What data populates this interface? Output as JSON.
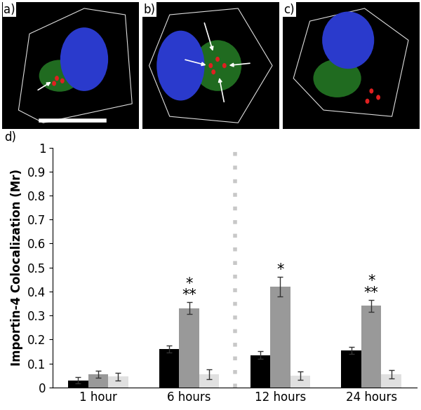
{
  "panels": [
    "a)",
    "b)",
    "c)"
  ],
  "chart_data": {
    "type": "bar",
    "panel_label": "d)",
    "y_label": "Importin-4 Colocalization (Mr)",
    "categories": [
      "1 hour",
      "6 hours",
      "12 hours",
      "24 hours"
    ],
    "series": [
      {
        "color": "#000000",
        "values": [
          0.03,
          0.16,
          0.135,
          0.155
        ],
        "errors": [
          0.012,
          0.015,
          0.015,
          0.015
        ]
      },
      {
        "color": "#999999",
        "values": [
          0.055,
          0.33,
          0.42,
          0.34
        ],
        "errors": [
          0.015,
          0.025,
          0.04,
          0.025
        ]
      },
      {
        "color": "#e0e0e0",
        "values": [
          0.045,
          0.055,
          0.05,
          0.055
        ],
        "errors": [
          0.015,
          0.02,
          0.018,
          0.018
        ]
      }
    ],
    "annotations": [
      {
        "category": "6 hours",
        "lines": [
          "*",
          "**"
        ]
      },
      {
        "category": "12 hours",
        "lines": [
          "*"
        ]
      },
      {
        "category": "24 hours",
        "lines": [
          "*",
          "**"
        ]
      }
    ],
    "ylim": [
      0,
      1
    ],
    "yticks": [
      0,
      0.1,
      0.2,
      0.3,
      0.4,
      0.5,
      0.6,
      0.7,
      0.8,
      0.9,
      1
    ],
    "grid": false
  }
}
